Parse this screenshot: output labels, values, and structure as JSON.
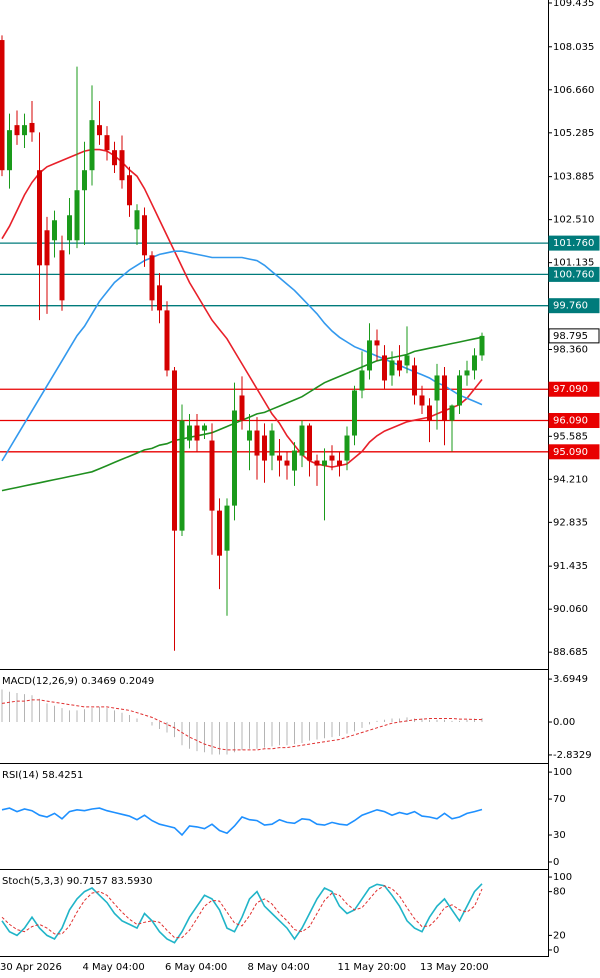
{
  "chart_data": [
    {
      "type": "candlestick",
      "categories": [
        "30 Apr 2026",
        null,
        null,
        null,
        null,
        null,
        null,
        null,
        null,
        null,
        null,
        "4 May 04:00",
        null,
        null,
        null,
        null,
        null,
        null,
        null,
        null,
        null,
        null,
        "6 May 04:00",
        null,
        null,
        null,
        null,
        null,
        null,
        null,
        null,
        null,
        null,
        "8 May 04:00",
        null,
        null,
        null,
        null,
        null,
        null,
        null,
        null,
        null,
        null,
        null,
        "11 May 20:00",
        null,
        null,
        null,
        null,
        null,
        null,
        null,
        null,
        null,
        null,
        "13 May 20:00",
        null,
        null,
        null,
        null,
        null,
        null,
        null,
        null
      ],
      "open": [
        108.25,
        104.09,
        105.53,
        105.21,
        105.6,
        104.09,
        102.17,
        101.85,
        101.53,
        101.85,
        101.85,
        103.45,
        104.09,
        105.53,
        105.21,
        104.73,
        104.73,
        103.93,
        102.2,
        102.65,
        101.37,
        100.41,
        99.61,
        97.69,
        92.57,
        95.45,
        95.93,
        95.77,
        95.45,
        93.21,
        91.93,
        93.37,
        96.89,
        95.45,
        95.77,
        95.61,
        94.97,
        94.97,
        94.81,
        94.49,
        94.97,
        95.93,
        94.81,
        94.65,
        94.97,
        94.81,
        94.81,
        95.61,
        97.05,
        97.69,
        98.65,
        98.17,
        97.53,
        98.01,
        97.85,
        97.85,
        96.89,
        96.57,
        96.73,
        97.53,
        96.09,
        96.57,
        97.53,
        97.69,
        98.17
      ],
      "high": [
        108.4,
        105.9,
        106.0,
        105.9,
        106.3,
        105.3,
        102.6,
        102.8,
        102.0,
        103.2,
        107.4,
        105.0,
        106.8,
        106.3,
        105.5,
        105.0,
        105.2,
        104.2,
        103.0,
        102.9,
        101.5,
        100.8,
        99.9,
        97.8,
        96.6,
        96.3,
        96.3,
        96.0,
        96.0,
        93.6,
        93.6,
        97.3,
        97.5,
        96.3,
        96.2,
        96.0,
        96.0,
        95.5,
        95.1,
        95.4,
        96.1,
        96.0,
        95.0,
        95.2,
        95.3,
        95.1,
        95.9,
        97.2,
        98.3,
        99.2,
        99.0,
        98.5,
        98.3,
        98.5,
        99.1,
        98.1,
        97.2,
        96.8,
        97.9,
        97.8,
        96.6,
        97.7,
        98.0,
        98.4,
        98.9
      ],
      "low": [
        103.9,
        103.5,
        104.9,
        104.8,
        105.0,
        99.3,
        99.5,
        101.3,
        99.6,
        101.4,
        101.6,
        101.7,
        103.6,
        104.9,
        104.4,
        104.0,
        103.5,
        102.6,
        101.7,
        101.0,
        99.6,
        99.2,
        97.5,
        88.73,
        92.4,
        95.2,
        95.1,
        95.5,
        91.8,
        90.7,
        89.85,
        92.9,
        95.8,
        94.5,
        94.2,
        94.1,
        94.5,
        94.3,
        94.2,
        94.0,
        94.6,
        94.3,
        94.0,
        92.9,
        94.5,
        94.3,
        94.5,
        95.3,
        96.8,
        97.4,
        98.0,
        97.1,
        97.2,
        97.5,
        97.6,
        96.6,
        96.3,
        95.4,
        95.8,
        95.3,
        95.1,
        96.3,
        97.2,
        97.4,
        98.0
      ],
      "close": [
        104.09,
        105.37,
        105.21,
        105.53,
        105.3,
        101.05,
        101.05,
        102.49,
        99.93,
        102.65,
        103.45,
        104.09,
        105.69,
        105.21,
        104.73,
        104.25,
        103.77,
        102.97,
        102.81,
        101.37,
        99.93,
        99.61,
        97.69,
        92.57,
        96.09,
        95.93,
        95.45,
        95.93,
        93.21,
        91.77,
        93.37,
        96.41,
        96.09,
        95.77,
        94.97,
        94.81,
        95.77,
        94.81,
        94.65,
        95.13,
        95.93,
        94.81,
        94.65,
        94.81,
        94.81,
        94.65,
        95.61,
        97.05,
        97.69,
        98.65,
        98.49,
        97.37,
        98.01,
        97.69,
        98.17,
        96.89,
        96.57,
        96.09,
        97.53,
        96.09,
        96.57,
        97.53,
        97.69,
        98.17,
        98.795
      ],
      "up_color": "#1a9a1a",
      "down_color": "#d40000",
      "series": [
        {
          "color": "#e8202a",
          "values": [
            101.9,
            102.3,
            102.8,
            103.3,
            103.7,
            104.0,
            104.2,
            104.3,
            104.4,
            104.5,
            104.6,
            104.7,
            104.75,
            104.75,
            104.7,
            104.55,
            104.35,
            104.1,
            103.9,
            103.5,
            103.0,
            102.5,
            102.0,
            101.5,
            101.0,
            100.5,
            100.1,
            99.7,
            99.3,
            99.0,
            98.7,
            98.3,
            97.9,
            97.5,
            97.1,
            96.7,
            96.3,
            96.0,
            95.6,
            95.3,
            95.0,
            94.8,
            94.7,
            94.65,
            94.6,
            94.65,
            94.7,
            94.9,
            95.1,
            95.4,
            95.6,
            95.75,
            95.85,
            95.95,
            96.05,
            96.1,
            96.15,
            96.2,
            96.3,
            96.4,
            96.5,
            96.6,
            96.8,
            97.1,
            97.4
          ]
        },
        {
          "color": "#3399ee",
          "values": [
            94.8,
            95.2,
            95.6,
            96.0,
            96.4,
            96.8,
            97.2,
            97.6,
            98.0,
            98.4,
            98.8,
            99.1,
            99.5,
            99.9,
            100.2,
            100.5,
            100.7,
            100.9,
            101.05,
            101.2,
            101.3,
            101.4,
            101.45,
            101.5,
            101.5,
            101.45,
            101.4,
            101.35,
            101.3,
            101.3,
            101.3,
            101.3,
            101.3,
            101.25,
            101.2,
            101.05,
            100.85,
            100.65,
            100.45,
            100.25,
            100.0,
            99.75,
            99.5,
            99.2,
            98.95,
            98.75,
            98.6,
            98.45,
            98.35,
            98.25,
            98.15,
            98.05,
            97.95,
            97.85,
            97.75,
            97.65,
            97.55,
            97.45,
            97.3,
            97.2,
            97.05,
            96.9,
            96.8,
            96.7,
            96.6
          ]
        },
        {
          "color": "#1f8f1f",
          "values": [
            93.85,
            93.9,
            93.95,
            94.0,
            94.05,
            94.1,
            94.15,
            94.2,
            94.25,
            94.3,
            94.35,
            94.4,
            94.45,
            94.55,
            94.65,
            94.75,
            94.85,
            94.95,
            95.05,
            95.15,
            95.2,
            95.3,
            95.35,
            95.45,
            95.5,
            95.55,
            95.6,
            95.65,
            95.7,
            95.8,
            95.9,
            96.0,
            96.1,
            96.2,
            96.3,
            96.35,
            96.45,
            96.55,
            96.65,
            96.75,
            96.85,
            97.0,
            97.15,
            97.3,
            97.4,
            97.5,
            97.6,
            97.7,
            97.8,
            97.9,
            98.0,
            98.05,
            98.1,
            98.15,
            98.2,
            98.3,
            98.35,
            98.4,
            98.45,
            98.5,
            98.55,
            98.6,
            98.65,
            98.7,
            98.75
          ]
        }
      ],
      "levels": [
        {
          "value": 101.76,
          "label": "101.760",
          "color": "#007b7b",
          "text_color": "#ffffff",
          "line": true
        },
        {
          "value": 100.76,
          "label": "100.760",
          "color": "#007b7b",
          "text_color": "#ffffff",
          "line": true
        },
        {
          "value": 99.76,
          "label": "99.760",
          "color": "#007b7b",
          "text_color": "#ffffff",
          "line": true
        },
        {
          "value": 98.795,
          "label": "98.795",
          "color": "#ffffff",
          "text_color": "#000000",
          "line": false
        },
        {
          "value": 97.09,
          "label": "97.090",
          "color": "#e80000",
          "text_color": "#ffffff",
          "line": true
        },
        {
          "value": 96.09,
          "label": "96.090",
          "color": "#e80000",
          "text_color": "#ffffff",
          "line": true
        },
        {
          "value": 95.09,
          "label": "95.090",
          "color": "#e80000",
          "text_color": "#ffffff",
          "line": true
        }
      ],
      "ylim": [
        88.18,
        109.53
      ],
      "yticks": [
        109.435,
        108.035,
        {
          "value": 106.66,
          "label": "106.660"
        },
        105.285,
        103.885,
        {
          "value": 102.51,
          "label": "102.510"
        },
        101.135,
        {
          "value": 98.36,
          "label": "98.360"
        },
        95.585,
        {
          "value": 94.21,
          "label": "94.210"
        },
        92.835,
        91.435,
        {
          "value": 90.06,
          "label": "90.060"
        },
        88.685
      ]
    },
    {
      "type": "indicator",
      "title": "MACD(12,26,9) 0.3469 0.2049",
      "series": [
        {
          "color": "#b4b4b4",
          "style": "bar",
          "values": [
            2.8,
            2.6,
            2.5,
            2.4,
            2.3,
            2.0,
            1.6,
            1.4,
            1.2,
            1.0,
            1.0,
            1.1,
            1.2,
            1.3,
            1.2,
            1.0,
            0.8,
            0.6,
            0.3,
            0.0,
            -0.3,
            -0.6,
            -0.9,
            -1.3,
            -2.0,
            -2.3,
            -2.5,
            -2.6,
            -2.8,
            -2.8,
            -2.8,
            -2.6,
            -2.4,
            -2.3,
            -2.3,
            -2.2,
            -2.1,
            -2.0,
            -2.0,
            -1.9,
            -1.8,
            -1.6,
            -1.5,
            -1.4,
            -1.3,
            -1.2,
            -1.0,
            -0.8,
            -0.5,
            -0.2,
            0.1,
            0.2,
            0.3,
            0.3,
            0.4,
            0.3,
            0.3,
            0.2,
            0.2,
            0.2,
            0.1,
            0.1,
            0.2,
            0.3,
            0.3469
          ]
        },
        {
          "color": "#e03030",
          "style": "dashed",
          "values": [
            1.6,
            1.7,
            1.8,
            1.8,
            1.9,
            1.9,
            1.8,
            1.7,
            1.6,
            1.5,
            1.4,
            1.3,
            1.3,
            1.3,
            1.3,
            1.2,
            1.1,
            1.0,
            0.8,
            0.6,
            0.4,
            0.1,
            -0.2,
            -0.5,
            -0.9,
            -1.3,
            -1.6,
            -1.9,
            -2.1,
            -2.3,
            -2.4,
            -2.4,
            -2.4,
            -2.4,
            -2.4,
            -2.3,
            -2.3,
            -2.2,
            -2.2,
            -2.1,
            -2.0,
            -1.9,
            -1.8,
            -1.7,
            -1.6,
            -1.5,
            -1.3,
            -1.1,
            -0.9,
            -0.7,
            -0.5,
            -0.3,
            -0.1,
            0.0,
            0.1,
            0.2,
            0.25,
            0.3,
            0.3,
            0.3,
            0.3,
            0.25,
            0.25,
            0.22,
            0.2049
          ]
        }
      ],
      "ylim": [
        -3.44,
        4.39
      ],
      "yticks": [
        3.6949,
        {
          "value": 0,
          "label": "0.00"
        },
        -2.8329
      ]
    },
    {
      "type": "indicator",
      "title": "RSI(14) 58.4251",
      "series": [
        {
          "color": "#1e90ff",
          "style": "line",
          "values": [
            58,
            60,
            56,
            59,
            57,
            52,
            50,
            54,
            48,
            56,
            58,
            57,
            59,
            60,
            57,
            55,
            53,
            51,
            47,
            52,
            46,
            42,
            40,
            38,
            30,
            40,
            39,
            37,
            42,
            35,
            32,
            40,
            50,
            47,
            46,
            41,
            42,
            47,
            44,
            43,
            48,
            47,
            42,
            41,
            44,
            42,
            41,
            46,
            52,
            55,
            58,
            56,
            52,
            55,
            53,
            56,
            51,
            50,
            48,
            54,
            48,
            50,
            54,
            56,
            58.4251
          ]
        }
      ],
      "ylim": [
        -6.7,
        107.9
      ],
      "yticks": [
        100,
        70,
        30,
        0
      ]
    },
    {
      "type": "indicator",
      "title": "Stoch(5,3,3) 90.7157 83.5930",
      "series": [
        {
          "color": "#20b4c8",
          "style": "line",
          "values": [
            40,
            25,
            20,
            30,
            45,
            30,
            20,
            15,
            30,
            55,
            70,
            80,
            85,
            75,
            65,
            50,
            40,
            35,
            30,
            50,
            40,
            25,
            15,
            10,
            25,
            45,
            60,
            75,
            70,
            55,
            30,
            25,
            45,
            70,
            80,
            60,
            50,
            40,
            30,
            15,
            30,
            50,
            70,
            85,
            80,
            60,
            50,
            55,
            70,
            85,
            90,
            88,
            75,
            60,
            40,
            30,
            25,
            45,
            60,
            70,
            55,
            40,
            60,
            80,
            90.7157
          ]
        },
        {
          "color": "#e03030",
          "style": "dashed",
          "values": [
            45,
            35,
            28,
            25,
            32,
            35,
            30,
            22,
            22,
            33,
            52,
            68,
            78,
            80,
            75,
            63,
            52,
            42,
            35,
            38,
            40,
            38,
            27,
            17,
            17,
            27,
            43,
            60,
            68,
            67,
            52,
            37,
            33,
            47,
            65,
            70,
            63,
            50,
            40,
            28,
            25,
            32,
            50,
            68,
            78,
            75,
            63,
            55,
            58,
            70,
            82,
            88,
            84,
            74,
            58,
            43,
            32,
            33,
            43,
            58,
            62,
            55,
            52,
            60,
            83.593
          ]
        }
      ],
      "ylim": [
        -6.9,
        108.3
      ],
      "yticks": [
        100,
        80,
        20,
        0
      ]
    }
  ]
}
